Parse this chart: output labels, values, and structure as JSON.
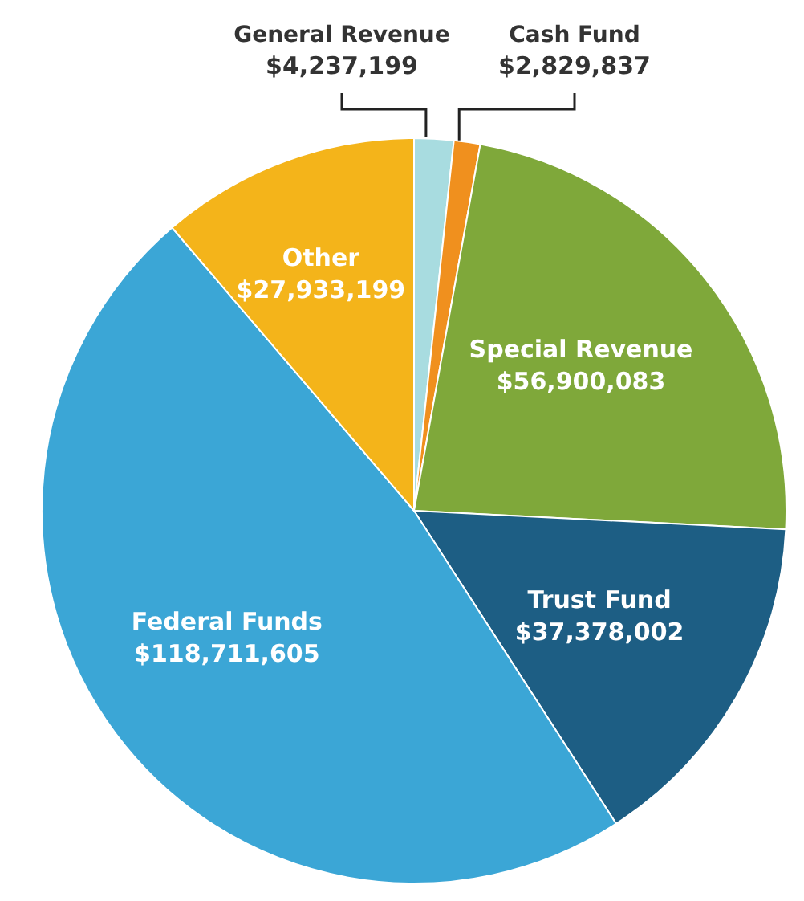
{
  "chart_data": {
    "type": "pie",
    "categories": [
      "General Revenue",
      "Cash Fund",
      "Special Revenue",
      "Trust Fund",
      "Federal Funds",
      "Other"
    ],
    "values": [
      4237199,
      2829837,
      56900083,
      37378002,
      118711605,
      27933199
    ],
    "value_labels": [
      "$4,237,199",
      "$2,829,837",
      "$56,900,083",
      "$37,378,002",
      "$118,711,605",
      "$27,933,199"
    ],
    "colors": [
      "#a8dce0",
      "#f0901e",
      "#7fa83a",
      "#1d5e84",
      "#3ba6d6",
      "#f4b41a"
    ]
  }
}
